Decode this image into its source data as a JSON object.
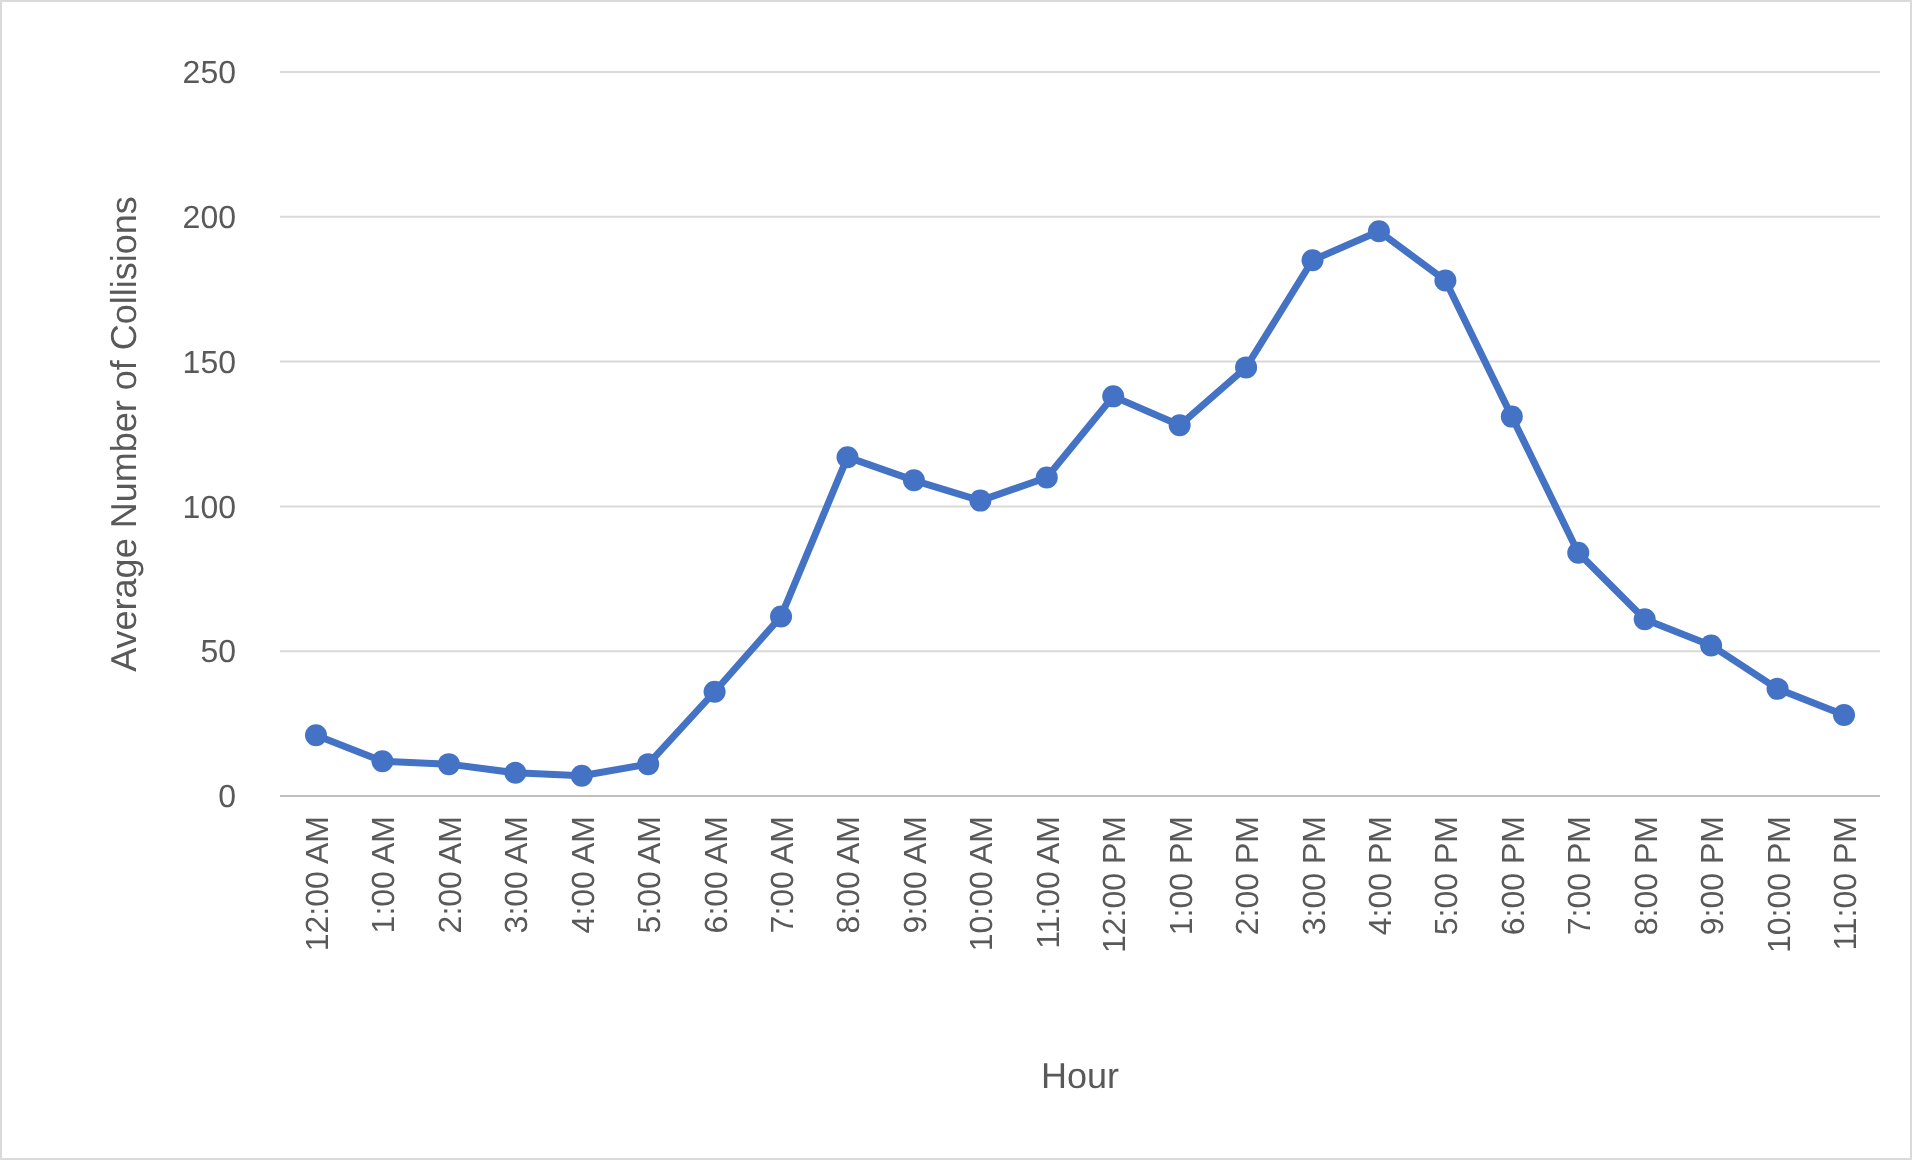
{
  "chart_data": {
    "type": "line",
    "xlabel": "Hour",
    "ylabel": "Average Number of Collisions",
    "categories": [
      "12:00 AM",
      "1:00 AM",
      "2:00 AM",
      "3:00 AM",
      "4:00 AM",
      "5:00 AM",
      "6:00 AM",
      "7:00 AM",
      "8:00 AM",
      "9:00 AM",
      "10:00 AM",
      "11:00 AM",
      "12:00 PM",
      "1:00 PM",
      "2:00 PM",
      "3:00 PM",
      "4:00 PM",
      "5:00 PM",
      "6:00 PM",
      "7:00 PM",
      "8:00 PM",
      "9:00 PM",
      "10:00 PM",
      "11:00 PM"
    ],
    "series": [
      {
        "color": "#4472c4",
        "values": [
          21,
          12,
          11,
          8,
          7,
          11,
          36,
          62,
          117,
          109,
          102,
          110,
          138,
          128,
          148,
          185,
          195,
          178,
          131,
          84,
          61,
          52,
          37,
          28
        ]
      }
    ],
    "ylim": [
      0,
      250
    ],
    "yticks": [
      0,
      50,
      100,
      150,
      200,
      250
    ],
    "grid": "y",
    "marker": "circle",
    "line_style": "solid"
  }
}
